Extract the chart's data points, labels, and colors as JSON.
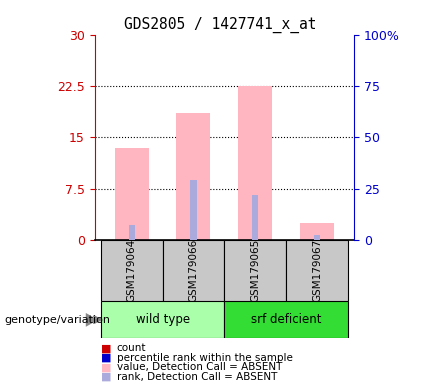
{
  "title": "GDS2805 / 1427741_x_at",
  "samples": [
    "GSM179064",
    "GSM179066",
    "GSM179065",
    "GSM179067"
  ],
  "bar_values": [
    13.5,
    18.5,
    22.5,
    2.5
  ],
  "rank_values": [
    2.2,
    8.8,
    6.5,
    0.8
  ],
  "ylim_left": [
    0,
    30
  ],
  "ylim_right": [
    0,
    100
  ],
  "yticks_left": [
    0,
    7.5,
    15,
    22.5,
    30
  ],
  "yticks_right": [
    0,
    25,
    50,
    75,
    100
  ],
  "ytick_labels_left": [
    "0",
    "7.5",
    "15",
    "22.5",
    "30"
  ],
  "ytick_labels_right": [
    "0",
    "25",
    "50",
    "75",
    "100%"
  ],
  "bar_color_absent": "#FFB6C1",
  "rank_color_absent": "#AAAADD",
  "left_axis_color": "#CC0000",
  "right_axis_color": "#0000CC",
  "wild_type_color": "#AAFFAA",
  "srf_color": "#33DD33",
  "sample_box_color": "#C8C8C8",
  "legend_items": [
    {
      "label": "count",
      "color": "#CC0000"
    },
    {
      "label": "percentile rank within the sample",
      "color": "#0000CC"
    },
    {
      "label": "value, Detection Call = ABSENT",
      "color": "#FFB6C1"
    },
    {
      "label": "rank, Detection Call = ABSENT",
      "color": "#AAAADD"
    }
  ],
  "genotype_label": "genotype/variation"
}
